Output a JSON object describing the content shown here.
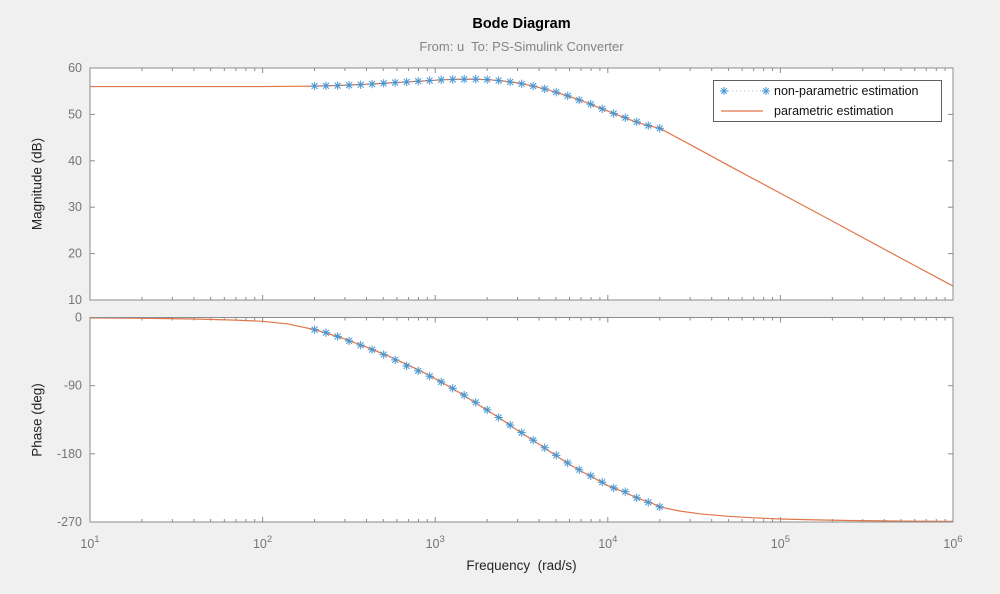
{
  "figure": {
    "title": "Bode Diagram",
    "subtitle": "From: u  To: PS-Simulink Converter",
    "background_color": "#f0f0f0",
    "axes_box_color": "#8c8c8c",
    "tick_label_color": "#757575"
  },
  "legend": {
    "items": [
      {
        "label": "non-parametric estimation"
      },
      {
        "label": "parametric estimation"
      }
    ]
  },
  "chart_data": [
    {
      "type": "line",
      "title": "Bode Diagram",
      "subtitle": "From: u  To: PS-Simulink Converter",
      "ylabel": "Magnitude (dB)",
      "xscale": "log",
      "xlim": [
        10,
        1000000
      ],
      "ylim": [
        10,
        60
      ],
      "yticks": [
        10,
        20,
        30,
        40,
        50,
        60
      ],
      "xtick_exponents": [
        1,
        2,
        3,
        4,
        5,
        6
      ],
      "grid": false,
      "legend_position": "top-right",
      "series": [
        {
          "name": "non-parametric estimation",
          "style": "asterisk-markers-dotted",
          "color": "#4596d2",
          "connector_color": "#9cc6e4",
          "x": [
            200,
            233,
            272,
            317,
            370,
            431,
            503,
            586,
            683,
            797,
            929,
            1083,
            1263,
            1472,
            1717,
            2000,
            2332,
            2719,
            3170,
            3696,
            4309,
            5024,
            5857,
            6829,
            7962,
            9283,
            10823,
            12619,
            14713,
            17154,
            20000
          ],
          "y": [
            56.1,
            56.15,
            56.2,
            56.3,
            56.4,
            56.55,
            56.7,
            56.85,
            57.0,
            57.15,
            57.3,
            57.45,
            57.55,
            57.6,
            57.6,
            57.5,
            57.3,
            57.0,
            56.6,
            56.1,
            55.5,
            54.8,
            54.0,
            53.1,
            52.2,
            51.2,
            50.2,
            49.3,
            48.4,
            47.6,
            47.0
          ]
        },
        {
          "name": "parametric estimation",
          "style": "solid",
          "color": "#e0764a",
          "x": [
            10,
            30,
            60,
            100,
            150,
            200,
            280,
            400,
            550,
            700,
            900,
            1100,
            1300,
            1600,
            2000,
            2400,
            3000,
            3700,
            4500,
            5500,
            7000,
            9000,
            11000,
            14000,
            17000,
            20000,
            30000,
            50000,
            100000,
            200000,
            500000,
            1000000
          ],
          "y": [
            56.0,
            56.0,
            56.0,
            56.0,
            56.05,
            56.1,
            56.25,
            56.5,
            56.8,
            57.0,
            57.25,
            57.45,
            57.55,
            57.6,
            57.5,
            57.25,
            56.8,
            56.1,
            55.3,
            54.3,
            53.0,
            51.4,
            50.1,
            48.6,
            47.6,
            47.0,
            43.5,
            39.0,
            33.0,
            27.0,
            19.0,
            13.0
          ]
        }
      ]
    },
    {
      "type": "line",
      "ylabel": "Phase (deg)",
      "xlabel": "Frequency  (rad/s)",
      "xscale": "log",
      "xlim": [
        10,
        1000000
      ],
      "ylim": [
        -270,
        0
      ],
      "yticks": [
        0,
        -90,
        -180,
        -270
      ],
      "xtick_exponents": [
        1,
        2,
        3,
        4,
        5,
        6
      ],
      "grid": false,
      "series": [
        {
          "name": "non-parametric estimation",
          "style": "asterisk-markers-dotted",
          "color": "#4596d2",
          "connector_color": "#9cc6e4",
          "x": [
            200,
            233,
            272,
            317,
            370,
            431,
            503,
            586,
            683,
            797,
            929,
            1083,
            1263,
            1472,
            1717,
            2000,
            2332,
            2719,
            3170,
            3696,
            4309,
            5024,
            5857,
            6829,
            7962,
            9283,
            10823,
            12619,
            14713,
            17154,
            20000
          ],
          "y": [
            -16,
            -20,
            -25,
            -31,
            -36.5,
            -42.5,
            -49,
            -56,
            -64,
            -70.5,
            -77.5,
            -85,
            -93.5,
            -102.5,
            -112,
            -122,
            -132,
            -142,
            -152,
            -162,
            -172,
            -182,
            -192,
            -201,
            -209,
            -217.5,
            -225,
            -230,
            -238,
            -244,
            -250
          ]
        },
        {
          "name": "parametric estimation",
          "style": "solid",
          "color": "#e0764a",
          "x": [
            10,
            20,
            40,
            70,
            100,
            140,
            200,
            280,
            400,
            550,
            700,
            900,
            1100,
            1400,
            1800,
            2300,
            3000,
            3800,
            4700,
            5800,
            7000,
            8500,
            10000,
            12000,
            15000,
            18000,
            20000,
            26000,
            35000,
            50000,
            70000,
            100000,
            150000,
            250000,
            400000,
            650000,
            1000000
          ],
          "y": [
            -0.5,
            -1.0,
            -2.0,
            -3.5,
            -5.0,
            -8.5,
            -16,
            -26,
            -39,
            -52,
            -63,
            -75,
            -86,
            -100,
            -116,
            -131,
            -149,
            -164,
            -178,
            -192,
            -203,
            -213,
            -222,
            -229,
            -239,
            -245,
            -250,
            -255.5,
            -259.5,
            -262.5,
            -264.5,
            -266,
            -267,
            -268,
            -268.5,
            -269,
            -269.2
          ]
        }
      ]
    }
  ]
}
